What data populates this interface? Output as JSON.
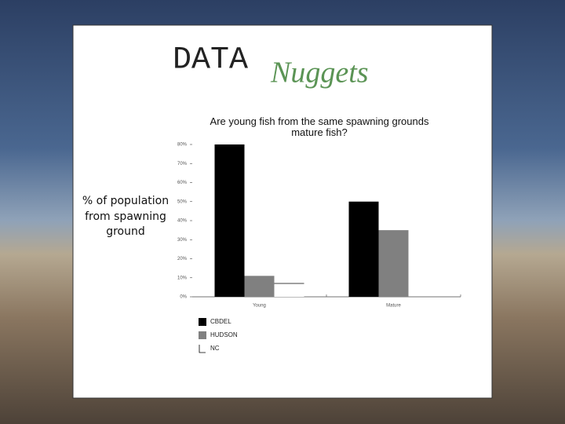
{
  "logo": {
    "word1": "DATA",
    "word2": "Nuggets"
  },
  "chart_data": {
    "type": "bar",
    "title": "Are young fish from the same spawning grounds mature fish?",
    "ylabel": "% of population from spawning ground",
    "categories": [
      "Young",
      "Mature"
    ],
    "series": [
      {
        "name": "CBDEL",
        "color": "#000000",
        "values": [
          80,
          50
        ]
      },
      {
        "name": "HUDSON",
        "color": "#808080",
        "values": [
          11,
          35
        ]
      },
      {
        "name": "NC",
        "color": "#ffffff",
        "values": [
          7,
          0
        ]
      }
    ],
    "ylim": [
      0,
      80
    ],
    "yticks": [
      {
        "value": 0,
        "label": "0%"
      },
      {
        "value": 10,
        "label": "10%"
      },
      {
        "value": 20,
        "label": "20%"
      },
      {
        "value": 30,
        "label": "30%"
      },
      {
        "value": 40,
        "label": "40%"
      },
      {
        "value": 50,
        "label": "50%"
      },
      {
        "value": 60,
        "label": "60%"
      },
      {
        "value": 70,
        "label": "70%"
      },
      {
        "value": 80,
        "label": "80%"
      }
    ],
    "legend": "bottom-left"
  }
}
